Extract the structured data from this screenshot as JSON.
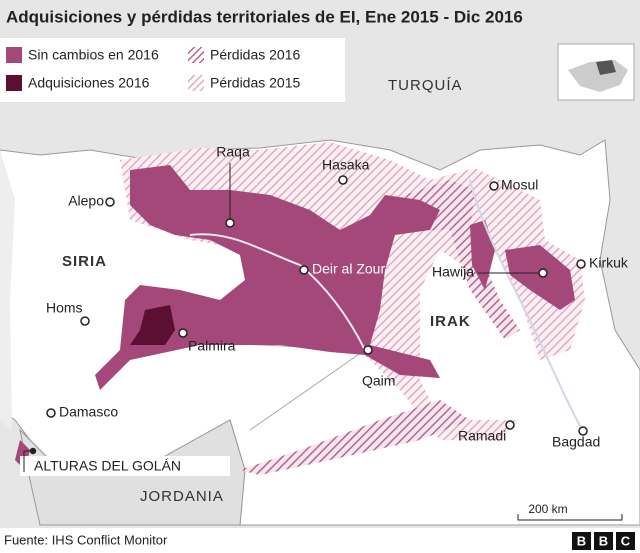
{
  "title": "Adquisiciones y pérdidas territoriales de EI, Ene 2015 - Dic 2016",
  "legend": [
    {
      "label": "Sin cambios en 2016",
      "color": "#a4487a",
      "hatched": false
    },
    {
      "label": "Pérdidas 2016",
      "color": "#b56690",
      "hatched": true
    },
    {
      "label": "Adquisiciones 2016",
      "color": "#5a0f33",
      "hatched": false
    },
    {
      "label": "Pérdidas 2015",
      "color": "#e2a9c0",
      "hatched": true
    }
  ],
  "countries": [
    "TURQUÍA",
    "SIRIA",
    "IRAK",
    "JORDANIA"
  ],
  "cities": [
    "Raqa",
    "Hasaka",
    "Alepo",
    "Mosul",
    "Deir al Zour",
    "Hawija",
    "Kirkuk",
    "Homs",
    "Palmira",
    "Qaim",
    "Damasco",
    "Ramadi",
    "Bagdad"
  ],
  "region_label": "ALTURAS DEL GOLÁN",
  "scale": "200 km",
  "source": "Fuente: IHS Conflict Monitor",
  "logo": [
    "B",
    "B",
    "C"
  ]
}
